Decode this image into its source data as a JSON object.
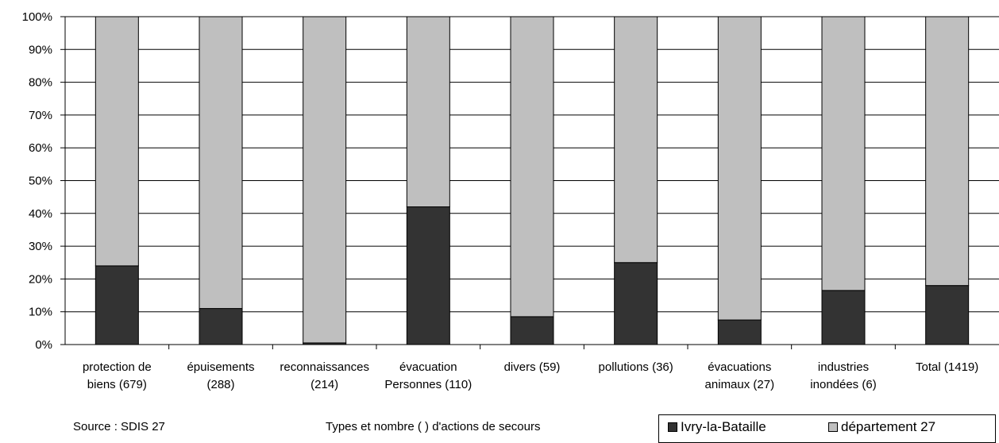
{
  "chart_data": {
    "type": "bar",
    "stacked": true,
    "categories": [
      [
        "protection de",
        "biens (679)"
      ],
      [
        "épuisements",
        "(288)"
      ],
      [
        "reconnaissances",
        "(214)"
      ],
      [
        "évacuation",
        "Personnes (110)"
      ],
      [
        "divers (59)"
      ],
      [
        "pollutions (36)"
      ],
      [
        "évacuations",
        "animaux (27)"
      ],
      [
        "industries",
        "inondées (6)"
      ],
      [
        "Total (1419)"
      ]
    ],
    "series": [
      {
        "name": "Ivry-la-Bataille",
        "values": [
          24,
          11,
          0.5,
          42,
          8.5,
          25,
          7.5,
          16.5,
          18
        ],
        "color": "#333333"
      },
      {
        "name": "département 27",
        "values": [
          76,
          89,
          99.5,
          58,
          91.5,
          75,
          92.5,
          83.5,
          82
        ],
        "color": "#bfbfbf"
      }
    ],
    "ylim": [
      0,
      100
    ],
    "yticks": [
      "0%",
      "10%",
      "20%",
      "30%",
      "40%",
      "50%",
      "60%",
      "70%",
      "80%",
      "90%",
      "100%"
    ],
    "grid": true,
    "xlabel": "Types et nombre ( ) d'actions de secours",
    "legend_position": "bottom-right"
  },
  "source": "Source : SDIS 27"
}
